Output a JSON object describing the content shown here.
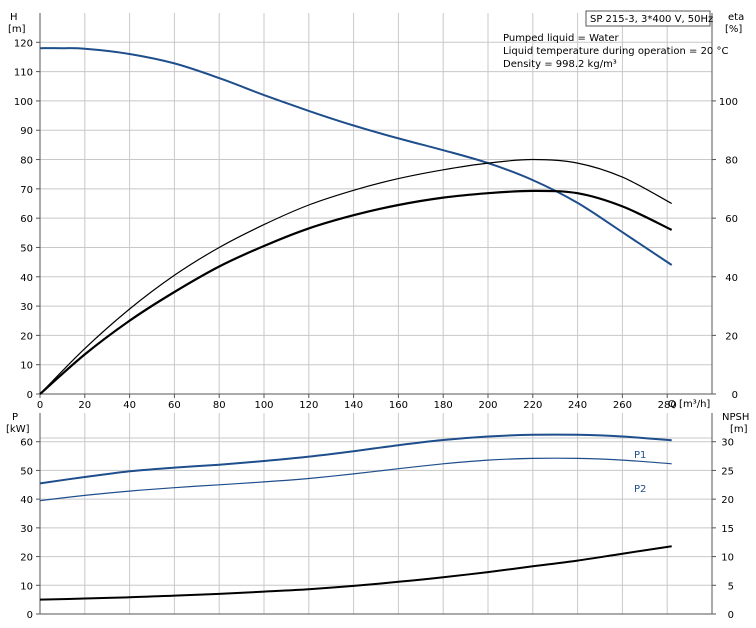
{
  "chart_data": [
    {
      "type": "line",
      "panel": "top",
      "title_box": "SP 215-3, 3*400 V, 50Hz",
      "info_lines": [
        "Pumped liquid = Water",
        "Liquid temperature during operation = 20 °C",
        "Density = 998.2 kg/m³"
      ],
      "ylabel_left": "H",
      "ylabel_left_unit": "[m]",
      "ylabel_right": "eta",
      "ylabel_right_unit": "[%]",
      "xlabel": "Q [m³/h]",
      "xlim": [
        0,
        300
      ],
      "x_ticks": [
        0,
        20,
        40,
        60,
        80,
        100,
        120,
        140,
        160,
        180,
        200,
        220,
        240,
        260,
        280
      ],
      "ylim_left": [
        0,
        130
      ],
      "y_ticks_left": [
        0,
        10,
        20,
        30,
        40,
        50,
        60,
        70,
        80,
        90,
        100,
        110,
        120
      ],
      "ylim_right": [
        0,
        130
      ],
      "y_ticks_right": [
        0,
        20,
        40,
        60,
        80,
        100
      ],
      "grid": true,
      "series": [
        {
          "key": "head",
          "axis": "left",
          "color": "#1f4e8c",
          "width": 2,
          "points": [
            [
              0,
              118
            ],
            [
              10,
              118
            ],
            [
              20,
              117.8
            ],
            [
              40,
              116
            ],
            [
              60,
              112.8
            ],
            [
              80,
              107.8
            ],
            [
              100,
              102
            ],
            [
              120,
              96.6
            ],
            [
              140,
              91.6
            ],
            [
              160,
              87.2
            ],
            [
              180,
              83.2
            ],
            [
              200,
              78.8
            ],
            [
              220,
              73
            ],
            [
              240,
              65.2
            ],
            [
              260,
              55.2
            ],
            [
              282,
              44
            ]
          ]
        },
        {
          "key": "efficiency-upper",
          "axis": "right",
          "color": "#000000",
          "width": 1.2,
          "points": [
            [
              0,
              0
            ],
            [
              20,
              15.5
            ],
            [
              40,
              29
            ],
            [
              60,
              40.5
            ],
            [
              80,
              50
            ],
            [
              100,
              57.8
            ],
            [
              120,
              64.5
            ],
            [
              140,
              69.5
            ],
            [
              160,
              73.5
            ],
            [
              180,
              76.5
            ],
            [
              200,
              78.8
            ],
            [
              220,
              80
            ],
            [
              240,
              78.8
            ],
            [
              260,
              74
            ],
            [
              282,
              65
            ]
          ]
        },
        {
          "key": "efficiency-lower",
          "axis": "right",
          "color": "#000000",
          "width": 2.2,
          "points": [
            [
              0,
              0
            ],
            [
              20,
              13.5
            ],
            [
              40,
              25
            ],
            [
              60,
              34.8
            ],
            [
              80,
              43.5
            ],
            [
              100,
              50.5
            ],
            [
              120,
              56.5
            ],
            [
              140,
              61
            ],
            [
              160,
              64.5
            ],
            [
              180,
              67
            ],
            [
              200,
              68.5
            ],
            [
              220,
              69.3
            ],
            [
              240,
              68.5
            ],
            [
              260,
              64
            ],
            [
              282,
              56
            ]
          ]
        }
      ]
    },
    {
      "type": "line",
      "panel": "bottom",
      "ylabel_left": "P",
      "ylabel_left_unit": "[kW]",
      "ylabel_right": "NPSH",
      "ylabel_right_unit": "[m]",
      "xlim": [
        0,
        300
      ],
      "ylim_left": [
        0,
        70
      ],
      "y_ticks_left": [
        0,
        10,
        20,
        30,
        40,
        50,
        60
      ],
      "ylim_right": [
        0,
        35
      ],
      "y_ticks_right": [
        0,
        5,
        10,
        15,
        20,
        25,
        30
      ],
      "grid": true,
      "series": [
        {
          "key": "P1",
          "name": "P1",
          "axis": "left",
          "color": "#1f4e8c",
          "width": 2,
          "points": [
            [
              0,
              45.5
            ],
            [
              20,
              47.7
            ],
            [
              40,
              49.7
            ],
            [
              60,
              51
            ],
            [
              80,
              52
            ],
            [
              100,
              53.3
            ],
            [
              120,
              54.8
            ],
            [
              140,
              56.7
            ],
            [
              160,
              58.8
            ],
            [
              180,
              60.6
            ],
            [
              200,
              61.8
            ],
            [
              220,
              62.4
            ],
            [
              240,
              62.4
            ],
            [
              260,
              61.8
            ],
            [
              282,
              60.5
            ]
          ]
        },
        {
          "key": "P2",
          "name": "P2",
          "axis": "left",
          "color": "#1f4e8c",
          "width": 1.2,
          "points": [
            [
              0,
              39.5
            ],
            [
              20,
              41.3
            ],
            [
              40,
              42.8
            ],
            [
              60,
              44
            ],
            [
              80,
              45
            ],
            [
              100,
              46
            ],
            [
              120,
              47.2
            ],
            [
              140,
              48.8
            ],
            [
              160,
              50.6
            ],
            [
              180,
              52.3
            ],
            [
              200,
              53.6
            ],
            [
              220,
              54.2
            ],
            [
              240,
              54.2
            ],
            [
              260,
              53.6
            ],
            [
              282,
              52.3
            ]
          ]
        },
        {
          "key": "npsh",
          "axis": "right",
          "color": "#000000",
          "width": 2,
          "points": [
            [
              0,
              2.5
            ],
            [
              20,
              2.7
            ],
            [
              40,
              2.9
            ],
            [
              60,
              3.2
            ],
            [
              80,
              3.5
            ],
            [
              100,
              3.9
            ],
            [
              120,
              4.3
            ],
            [
              140,
              4.9
            ],
            [
              160,
              5.6
            ],
            [
              180,
              6.4
            ],
            [
              200,
              7.3
            ],
            [
              220,
              8.3
            ],
            [
              240,
              9.3
            ],
            [
              260,
              10.5
            ],
            [
              282,
              11.8
            ]
          ]
        }
      ]
    }
  ]
}
